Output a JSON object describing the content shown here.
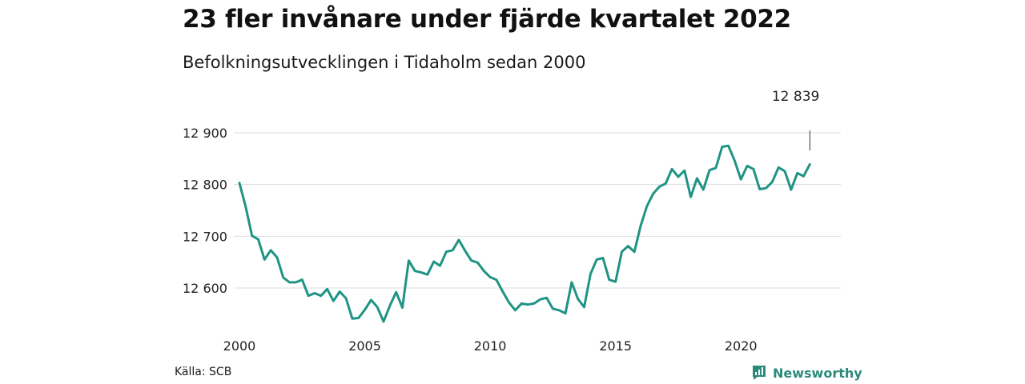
{
  "header": {
    "title": "23 fler invånare under fjärde kvartalet 2022",
    "subtitle": "Befolkningsutvecklingen i Tidaholm sedan 2000"
  },
  "footer": {
    "source": "Källa: SCB",
    "brand": "Newsworthy"
  },
  "colors": {
    "line": "#1f9484",
    "grid": "#dddddd",
    "brand": "#2b8a7c"
  },
  "chart_data": {
    "type": "line",
    "title": "23 fler invånare under fjärde kvartalet 2022",
    "subtitle": "Befolkningsutvecklingen i Tidaholm sedan 2000",
    "xlabel": "",
    "ylabel": "",
    "x_range": [
      2000,
      2023.25
    ],
    "ylim": [
      12530,
      12910
    ],
    "yticks": [
      12600,
      12700,
      12800,
      12900
    ],
    "ytick_labels": [
      "12 600",
      "12 700",
      "12 800",
      "12 900"
    ],
    "xticks": [
      2000,
      2005,
      2010,
      2015,
      2020
    ],
    "xtick_labels": [
      "2000",
      "2005",
      "2010",
      "2015",
      "2020"
    ],
    "grid": true,
    "last_value_label": "12 839",
    "series": [
      {
        "values": [
          [
            2000.0,
            12803
          ],
          [
            2000.25,
            12757
          ],
          [
            2000.5,
            12701
          ],
          [
            2000.75,
            12694
          ],
          [
            2001.0,
            12655
          ],
          [
            2001.25,
            12673
          ],
          [
            2001.5,
            12659
          ],
          [
            2001.75,
            12620
          ],
          [
            2002.0,
            12611
          ],
          [
            2002.25,
            12611
          ],
          [
            2002.5,
            12616
          ],
          [
            2002.75,
            12585
          ],
          [
            2003.0,
            12590
          ],
          [
            2003.25,
            12585
          ],
          [
            2003.5,
            12598
          ],
          [
            2003.75,
            12575
          ],
          [
            2004.0,
            12593
          ],
          [
            2004.25,
            12580
          ],
          [
            2004.5,
            12541
          ],
          [
            2004.75,
            12542
          ],
          [
            2005.0,
            12558
          ],
          [
            2005.25,
            12577
          ],
          [
            2005.5,
            12563
          ],
          [
            2005.75,
            12535
          ],
          [
            2006.0,
            12566
          ],
          [
            2006.25,
            12592
          ],
          [
            2006.5,
            12562
          ],
          [
            2006.75,
            12653
          ],
          [
            2007.0,
            12633
          ],
          [
            2007.25,
            12630
          ],
          [
            2007.5,
            12626
          ],
          [
            2007.75,
            12651
          ],
          [
            2008.0,
            12643
          ],
          [
            2008.25,
            12670
          ],
          [
            2008.5,
            12673
          ],
          [
            2008.75,
            12693
          ],
          [
            2009.0,
            12672
          ],
          [
            2009.25,
            12653
          ],
          [
            2009.5,
            12649
          ],
          [
            2009.75,
            12633
          ],
          [
            2010.0,
            12621
          ],
          [
            2010.25,
            12616
          ],
          [
            2010.5,
            12593
          ],
          [
            2010.75,
            12572
          ],
          [
            2011.0,
            12557
          ],
          [
            2011.25,
            12570
          ],
          [
            2011.5,
            12568
          ],
          [
            2011.75,
            12570
          ],
          [
            2012.0,
            12578
          ],
          [
            2012.25,
            12581
          ],
          [
            2012.5,
            12560
          ],
          [
            2012.75,
            12557
          ],
          [
            2013.0,
            12551
          ],
          [
            2013.25,
            12611
          ],
          [
            2013.5,
            12579
          ],
          [
            2013.75,
            12563
          ],
          [
            2014.0,
            12627
          ],
          [
            2014.25,
            12655
          ],
          [
            2014.5,
            12658
          ],
          [
            2014.75,
            12616
          ],
          [
            2015.0,
            12612
          ],
          [
            2015.25,
            12670
          ],
          [
            2015.5,
            12681
          ],
          [
            2015.75,
            12670
          ],
          [
            2016.0,
            12720
          ],
          [
            2016.25,
            12758
          ],
          [
            2016.5,
            12782
          ],
          [
            2016.75,
            12796
          ],
          [
            2017.0,
            12802
          ],
          [
            2017.25,
            12830
          ],
          [
            2017.5,
            12815
          ],
          [
            2017.75,
            12827
          ],
          [
            2018.0,
            12776
          ],
          [
            2018.25,
            12812
          ],
          [
            2018.5,
            12790
          ],
          [
            2018.75,
            12828
          ],
          [
            2019.0,
            12832
          ],
          [
            2019.25,
            12873
          ],
          [
            2019.5,
            12875
          ],
          [
            2019.75,
            12846
          ],
          [
            2020.0,
            12810
          ],
          [
            2020.25,
            12836
          ],
          [
            2020.5,
            12830
          ],
          [
            2020.75,
            12791
          ],
          [
            2021.0,
            12793
          ],
          [
            2021.25,
            12805
          ],
          [
            2021.5,
            12833
          ],
          [
            2021.75,
            12826
          ],
          [
            2022.0,
            12790
          ],
          [
            2022.25,
            12822
          ],
          [
            2022.5,
            12816
          ],
          [
            2022.75,
            12839
          ]
        ]
      }
    ]
  }
}
